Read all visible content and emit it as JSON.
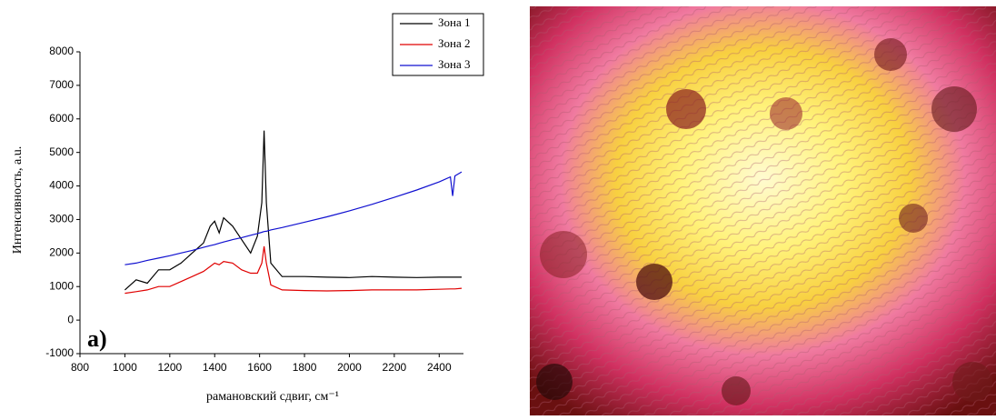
{
  "chart_data": {
    "type": "line",
    "xlabel": "рамановский сдвиг, см⁻¹",
    "ylabel": "Интенсивность, а.u.",
    "annotation": "а)",
    "legend": "upper right",
    "xlim": [
      800,
      2500
    ],
    "ylim": [
      -1000,
      8000
    ],
    "xticks": [
      800,
      1000,
      1200,
      1400,
      1600,
      1800,
      2000,
      2200,
      2400
    ],
    "yticks": [
      -1000,
      0,
      1000,
      2000,
      3000,
      4000,
      5000,
      6000,
      7000,
      8000
    ],
    "x": [
      1000,
      1050,
      1100,
      1150,
      1200,
      1250,
      1300,
      1350,
      1380,
      1400,
      1420,
      1440,
      1480,
      1520,
      1560,
      1590,
      1610,
      1620,
      1630,
      1650,
      1700,
      1800,
      1900,
      2000,
      2100,
      2200,
      2300,
      2400,
      2450,
      2460,
      2470,
      2500
    ],
    "series": [
      {
        "name": "Зона 1",
        "color": "#000000",
        "values": [
          900,
          1200,
          1100,
          1500,
          1500,
          1700,
          2000,
          2300,
          2800,
          2950,
          2600,
          3050,
          2800,
          2400,
          2000,
          2500,
          3500,
          5650,
          3500,
          1700,
          1300,
          1300,
          1280,
          1270,
          1300,
          1280,
          1270,
          1280,
          1280,
          1280,
          1280,
          1280
        ]
      },
      {
        "name": "Зона 2",
        "color": "#e00000",
        "values": [
          800,
          850,
          900,
          1000,
          1000,
          1150,
          1300,
          1450,
          1600,
          1700,
          1650,
          1750,
          1700,
          1500,
          1400,
          1400,
          1700,
          2200,
          1700,
          1050,
          900,
          880,
          870,
          880,
          900,
          900,
          900,
          920,
          930,
          930,
          930,
          950
        ]
      },
      {
        "name": "Зона 3",
        "color": "#1010d0",
        "values": [
          1650,
          1700,
          1780,
          1850,
          1920,
          2000,
          2080,
          2170,
          2220,
          2250,
          2290,
          2330,
          2400,
          2460,
          2530,
          2580,
          2620,
          2640,
          2650,
          2690,
          2760,
          2920,
          3080,
          3260,
          3450,
          3660,
          3880,
          4120,
          4270,
          3700,
          4300,
          4420
        ]
      }
    ]
  }
}
